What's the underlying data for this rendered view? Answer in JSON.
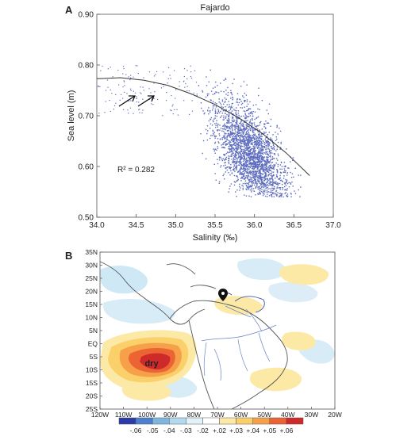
{
  "panel_a": {
    "letter": "A",
    "chart_data": {
      "type": "scatter",
      "title": "Fajardo",
      "xlabel": "Salinity (‰)",
      "ylabel": "Sea level (m)",
      "xlim": [
        34.0,
        37.0
      ],
      "ylim": [
        0.5,
        0.9
      ],
      "xticks": [
        "34.0",
        "34.5",
        "35.0",
        "35.5",
        "36.0",
        "36.5",
        "37.0"
      ],
      "yticks": [
        "0.50",
        "0.60",
        "0.70",
        "0.80",
        "0.90"
      ],
      "annotation": "R² = 0.282",
      "point_color": "#5b6bbf",
      "fit_curve": {
        "x": [
          34.0,
          34.3,
          34.6,
          34.9,
          35.2,
          35.5,
          35.8,
          36.1,
          36.4,
          36.7
        ],
        "y": [
          0.773,
          0.775,
          0.77,
          0.76,
          0.743,
          0.722,
          0.696,
          0.665,
          0.627,
          0.582
        ]
      },
      "point_cloud": {
        "core": {
          "x_range": [
            35.3,
            36.6
          ],
          "y_range": [
            0.54,
            0.8
          ],
          "center": [
            35.95,
            0.68
          ]
        },
        "sparse_low_salinity": {
          "x_range": [
            34.0,
            35.3
          ],
          "y_range": [
            0.7,
            0.8
          ]
        }
      }
    }
  },
  "panel_b": {
    "letter": "B",
    "chart_data": {
      "type": "heatmap",
      "x_ticks": [
        "120W",
        "110W",
        "100W",
        "90W",
        "80W",
        "70W",
        "60W",
        "50W",
        "40W",
        "30W",
        "20W"
      ],
      "y_ticks": [
        "35N",
        "30N",
        "25N",
        "20N",
        "15N",
        "10N",
        "5N",
        "EQ",
        "5S",
        "10S",
        "15S",
        "20S",
        "25S"
      ],
      "annotation": "dry",
      "colorbar": {
        "labels": [
          "-.06",
          "-.05",
          "-.04",
          "-.03",
          "-.02",
          "+.02",
          "+.03",
          "+.04",
          "+.05",
          "+.06"
        ],
        "colors": [
          "#2b3aa6",
          "#4d7fd0",
          "#7fb6e0",
          "#b2daef",
          "#e2f2fa",
          "#ffffff",
          "#fde9a6",
          "#fbd06a",
          "#f6a04a",
          "#ec6434",
          "#cf2a2a"
        ]
      },
      "regions": [
        {
          "name": "eastern-pacific-dry",
          "level": "+.06",
          "lon": [
            -110,
            -88
          ],
          "lat": [
            -12,
            0
          ]
        },
        {
          "name": "north-atlantic-wet",
          "level": "+.02",
          "lon": [
            -60,
            -45
          ],
          "lat": [
            15,
            20
          ]
        }
      ]
    }
  }
}
